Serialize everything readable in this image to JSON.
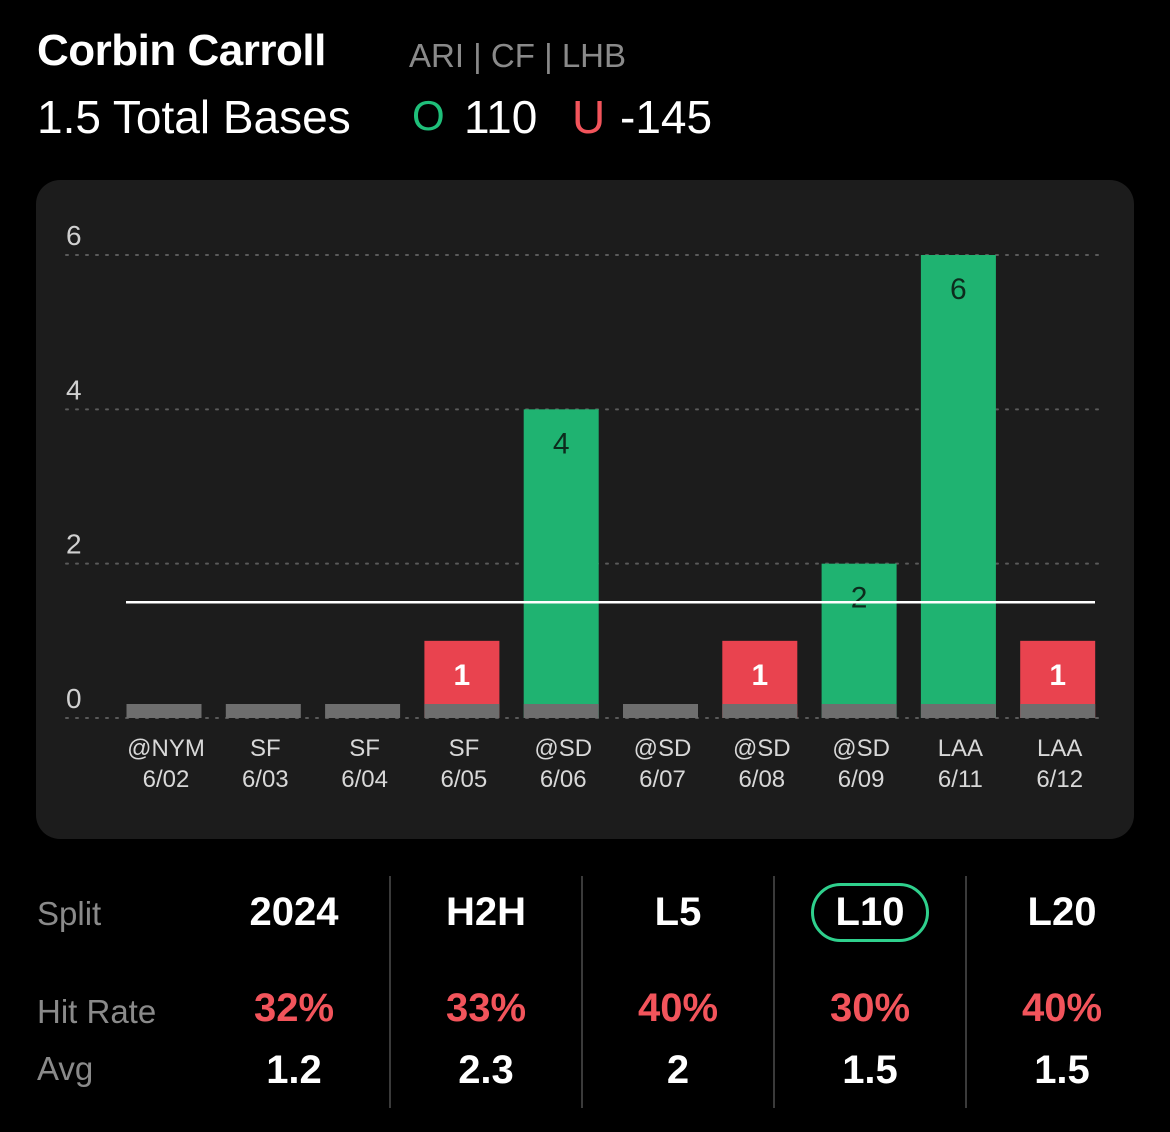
{
  "header": {
    "player_name": "Corbin Carroll",
    "player_meta": "ARI | CF | LHB",
    "prop_label": "1.5 Total Bases",
    "over_icon": "O",
    "over_odds": "110",
    "under_icon": "U",
    "under_odds": "-145"
  },
  "colors": {
    "over": "#1fb371",
    "under": "#e9434f",
    "zero": "#6e6e6e",
    "panel": "#1c1c1c",
    "active_ring": "#2fd08d"
  },
  "chart_data": {
    "type": "bar",
    "categories": [
      "@NYM",
      "SF",
      "SF",
      "SF",
      "@SD",
      "@SD",
      "@SD",
      "@SD",
      "LAA",
      "LAA"
    ],
    "dates": [
      "6/02",
      "6/03",
      "6/04",
      "6/05",
      "6/06",
      "6/07",
      "6/08",
      "6/09",
      "6/11",
      "6/12"
    ],
    "values": [
      0,
      0,
      0,
      1,
      4,
      0,
      1,
      2,
      6,
      1
    ],
    "ylim": [
      0,
      6
    ],
    "y_ticks": [
      0,
      2,
      4,
      6
    ],
    "line_value": 1.5,
    "grid": true
  },
  "splits": {
    "row_labels": {
      "split": "Split",
      "hit_rate": "Hit Rate",
      "avg": "Avg"
    },
    "columns": [
      {
        "label": "2024",
        "hit_rate": "32%",
        "avg": "1.2"
      },
      {
        "label": "H2H",
        "hit_rate": "33%",
        "avg": "2.3"
      },
      {
        "label": "L5",
        "hit_rate": "40%",
        "avg": "2"
      },
      {
        "label": "L10",
        "hit_rate": "30%",
        "avg": "1.5"
      },
      {
        "label": "L20",
        "hit_rate": "40%",
        "avg": "1.5"
      }
    ],
    "active": "L10"
  }
}
